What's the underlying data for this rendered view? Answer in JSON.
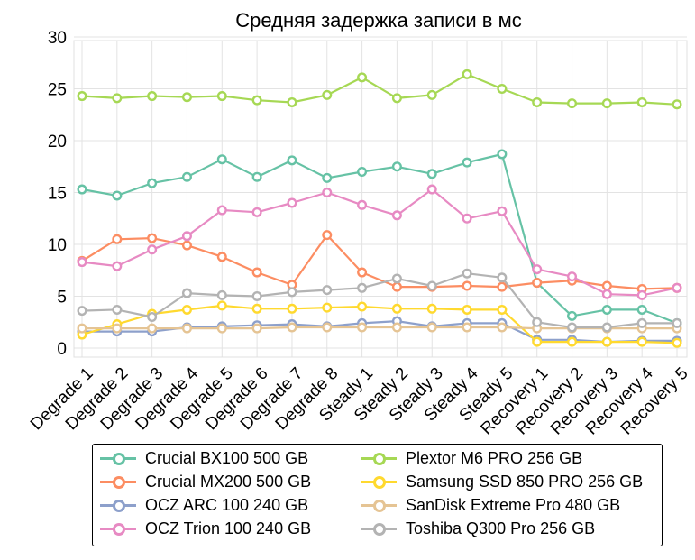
{
  "chart_data": {
    "type": "line",
    "title": "Средняя задержка записи в мс",
    "xlabel": "",
    "ylabel": "",
    "ylim": [
      0,
      30
    ],
    "yticks": [
      0,
      5,
      10,
      15,
      20,
      25,
      30
    ],
    "grid": true,
    "legend_position": "bottom",
    "categories": [
      "Degrade 1",
      "Degrade 2",
      "Degrade 3",
      "Degrade 4",
      "Degrade 5",
      "Degrade 6",
      "Degrade 7",
      "Degrade 8",
      "Steady 1",
      "Steady 2",
      "Steady 3",
      "Steady 4",
      "Steady 5",
      "Recovery 1",
      "Recovery 2",
      "Recovery 3",
      "Recovery 4",
      "Recovery 5"
    ],
    "series": [
      {
        "name": "Crucial BX100 500 GB",
        "color": "#66c2a5",
        "values": [
          15.3,
          14.7,
          15.9,
          16.5,
          18.2,
          16.5,
          18.1,
          16.4,
          17.0,
          17.5,
          16.8,
          17.9,
          18.7,
          6.3,
          3.1,
          3.7,
          3.7,
          2.4
        ]
      },
      {
        "name": "Crucial MX200 500 GB",
        "color": "#fc8d62",
        "values": [
          8.4,
          10.5,
          10.6,
          9.9,
          8.8,
          7.3,
          6.1,
          10.9,
          7.3,
          5.9,
          5.9,
          6.0,
          5.9,
          6.3,
          6.5,
          6.0,
          5.7,
          5.8
        ]
      },
      {
        "name": "OCZ ARC 100 240 GB",
        "color": "#8da0cb",
        "values": [
          1.6,
          1.6,
          1.6,
          2.0,
          2.1,
          2.2,
          2.3,
          2.1,
          2.4,
          2.6,
          2.1,
          2.4,
          2.4,
          0.8,
          0.8,
          0.6,
          0.7,
          0.7
        ]
      },
      {
        "name": "OCZ Trion 100 240 GB",
        "color": "#e78ac3",
        "values": [
          8.3,
          7.9,
          9.5,
          10.8,
          13.3,
          13.1,
          14.0,
          15.0,
          13.8,
          12.8,
          15.3,
          12.5,
          13.2,
          7.6,
          6.9,
          5.2,
          5.1,
          5.8
        ]
      },
      {
        "name": "Plextor M6 PRO 256 GB",
        "color": "#a6d854",
        "values": [
          24.3,
          24.1,
          24.3,
          24.2,
          24.3,
          23.9,
          23.7,
          24.4,
          26.1,
          24.1,
          24.4,
          26.4,
          25.0,
          23.7,
          23.6,
          23.6,
          23.7,
          23.5
        ]
      },
      {
        "name": "Samsung SSD 850 PRO 256 GB",
        "color": "#ffd92f",
        "values": [
          1.3,
          2.3,
          3.3,
          3.7,
          4.1,
          3.8,
          3.8,
          3.9,
          4.0,
          3.8,
          3.8,
          3.7,
          3.7,
          0.6,
          0.6,
          0.6,
          0.6,
          0.5
        ]
      },
      {
        "name": "SanDisk Extreme Pro 480 GB",
        "color": "#e5c494",
        "values": [
          1.9,
          1.9,
          1.9,
          1.9,
          1.9,
          1.9,
          2.0,
          2.0,
          2.0,
          2.0,
          2.0,
          2.0,
          2.0,
          1.9,
          1.9,
          1.9,
          1.9,
          1.9
        ]
      },
      {
        "name": "Toshiba Q300 Pro 256 GB",
        "color": "#b3b3b3",
        "values": [
          3.6,
          3.7,
          3.0,
          5.3,
          5.1,
          5.0,
          5.4,
          5.6,
          5.8,
          6.7,
          6.0,
          7.2,
          6.8,
          2.5,
          2.0,
          2.0,
          2.4,
          2.4
        ]
      }
    ]
  }
}
